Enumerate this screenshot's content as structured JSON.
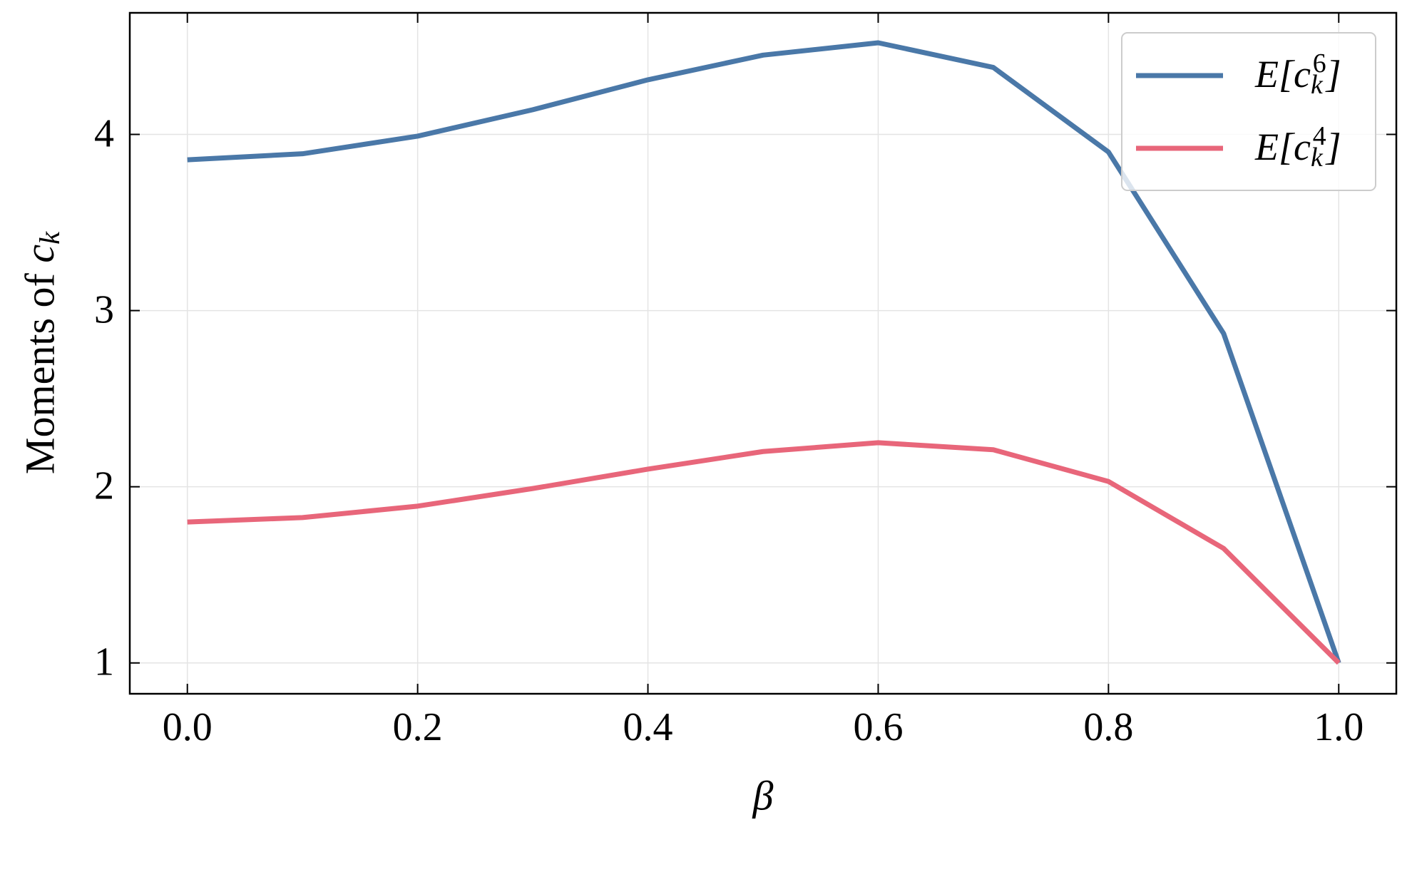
{
  "chart_data": {
    "type": "line",
    "x": [
      0,
      0.1,
      0.2,
      0.3,
      0.4,
      0.5,
      0.6,
      0.7,
      0.8,
      0.9,
      1
    ],
    "series": [
      {
        "name": "E[c_k^6]",
        "color": "#4a78a8",
        "values": [
          3.856,
          3.89,
          3.99,
          4.14,
          4.31,
          4.45,
          4.52,
          4.38,
          3.9,
          2.87,
          1
        ]
      },
      {
        "name": "E[c_k^4]",
        "color": "#e8667a",
        "values": [
          1.8,
          1.825,
          1.89,
          1.99,
          2.1,
          2.2,
          2.25,
          2.21,
          2.03,
          1.65,
          1
        ]
      }
    ],
    "xlabel": "β",
    "ylabel": "Moments of c_k",
    "xlim": [
      -0.05,
      1.05
    ],
    "ylim": [
      0.825,
      4.69
    ],
    "xticks": [
      {
        "value": 0,
        "label": "0.0"
      },
      0.2,
      0.4,
      0.6,
      0.8,
      {
        "value": 1,
        "label": "1.0"
      }
    ],
    "yticks": [
      1,
      2,
      3,
      4
    ],
    "grid": true,
    "legend": "upper right"
  }
}
